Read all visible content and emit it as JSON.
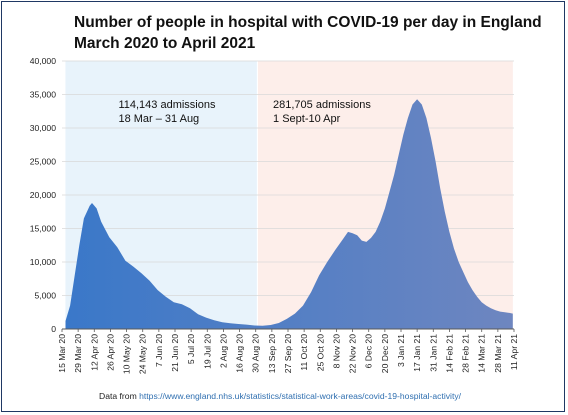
{
  "title_line1": "Number of people in hospital with COVID-19 per day in England",
  "title_line2": "March 2020 to April 2021",
  "source_prefix": "Data from",
  "source_url": "https://www.england.nhs.uk/statistics/statistical-work-areas/covid-19-hospital-activity/",
  "chart_data": {
    "type": "area",
    "ylim": [
      0,
      40000
    ],
    "yticks": [
      0,
      5000,
      10000,
      15000,
      20000,
      25000,
      30000,
      35000,
      40000
    ],
    "ytick_labels": [
      "0",
      "5,000",
      "10,000",
      "15,000",
      "20,000",
      "25,000",
      "30,000",
      "35,000",
      "40,000"
    ],
    "xlim": [
      "2020-03-15",
      "2021-04-11"
    ],
    "xtick_labels": [
      "15 Mar 20",
      "29 Mar 20",
      "12 Apr 20",
      "26 Apr 20",
      "10 May 20",
      "24 May 20",
      "7 Jun 20",
      "21 Jun 20",
      "5 Jul 20",
      "19 Jul 20",
      "2 Aug 20",
      "16 Aug 20",
      "30 Aug 20",
      "13 Sep 20",
      "27 Sep 20",
      "11 Oct 20",
      "25 Oct 20",
      "8 Nov 20",
      "22 Nov 20",
      "6 Dec 20",
      "20 Dec 20",
      "3 Jan 21",
      "17 Jan 21",
      "31 Jan 21",
      "14 Feb 21",
      "28 Feb 21",
      "14 Mar 21",
      "28 Mar 21",
      "11 Apr 21"
    ],
    "regions": [
      {
        "start": "2020-03-18",
        "end": "2020-08-31",
        "color": "#e8f3fb",
        "label1": "114,143 admissions",
        "label2": "18 Mar – 31 Aug"
      },
      {
        "start": "2020-09-01",
        "end": "2021-04-10",
        "color": "#fdeeea",
        "label1": "281,705 admissions",
        "label2": "1 Sept-10 Apr"
      }
    ],
    "series": [
      {
        "color_start": "#3a78c9",
        "color_end": "#6e86c0",
        "points": [
          [
            "2020-03-18",
            1200
          ],
          [
            "2020-03-22",
            3500
          ],
          [
            "2020-03-26",
            8000
          ],
          [
            "2020-03-30",
            12500
          ],
          [
            "2020-04-03",
            16500
          ],
          [
            "2020-04-08",
            18400
          ],
          [
            "2020-04-10",
            18800
          ],
          [
            "2020-04-14",
            18000
          ],
          [
            "2020-04-18",
            16000
          ],
          [
            "2020-04-25",
            13700
          ],
          [
            "2020-05-02",
            12200
          ],
          [
            "2020-05-09",
            10200
          ],
          [
            "2020-05-16",
            9300
          ],
          [
            "2020-05-23",
            8300
          ],
          [
            "2020-05-30",
            7200
          ],
          [
            "2020-06-06",
            5800
          ],
          [
            "2020-06-13",
            4800
          ],
          [
            "2020-06-20",
            4000
          ],
          [
            "2020-06-27",
            3700
          ],
          [
            "2020-07-04",
            3100
          ],
          [
            "2020-07-11",
            2200
          ],
          [
            "2020-07-18",
            1700
          ],
          [
            "2020-07-25",
            1300
          ],
          [
            "2020-08-01",
            1000
          ],
          [
            "2020-08-08",
            850
          ],
          [
            "2020-08-15",
            750
          ],
          [
            "2020-08-22",
            650
          ],
          [
            "2020-08-29",
            520
          ],
          [
            "2020-09-05",
            480
          ],
          [
            "2020-09-12",
            600
          ],
          [
            "2020-09-19",
            900
          ],
          [
            "2020-09-26",
            1500
          ],
          [
            "2020-10-03",
            2300
          ],
          [
            "2020-10-10",
            3500
          ],
          [
            "2020-10-17",
            5500
          ],
          [
            "2020-10-24",
            8000
          ],
          [
            "2020-10-31",
            10000
          ],
          [
            "2020-11-07",
            11800
          ],
          [
            "2020-11-14",
            13500
          ],
          [
            "2020-11-18",
            14500
          ],
          [
            "2020-11-22",
            14300
          ],
          [
            "2020-11-26",
            14000
          ],
          [
            "2020-11-30",
            13200
          ],
          [
            "2020-12-04",
            13000
          ],
          [
            "2020-12-08",
            13600
          ],
          [
            "2020-12-12",
            14500
          ],
          [
            "2020-12-16",
            16000
          ],
          [
            "2020-12-20",
            18000
          ],
          [
            "2020-12-24",
            20500
          ],
          [
            "2020-12-28",
            23000
          ],
          [
            "2021-01-01",
            26000
          ],
          [
            "2021-01-05",
            29000
          ],
          [
            "2021-01-09",
            31500
          ],
          [
            "2021-01-13",
            33500
          ],
          [
            "2021-01-17",
            34300
          ],
          [
            "2021-01-21",
            33500
          ],
          [
            "2021-01-25",
            31500
          ],
          [
            "2021-01-29",
            28500
          ],
          [
            "2021-02-02",
            25000
          ],
          [
            "2021-02-06",
            21000
          ],
          [
            "2021-02-10",
            17500
          ],
          [
            "2021-02-14",
            14500
          ],
          [
            "2021-02-18",
            12000
          ],
          [
            "2021-02-22",
            10000
          ],
          [
            "2021-02-26",
            8500
          ],
          [
            "2021-03-02",
            7000
          ],
          [
            "2021-03-06",
            5800
          ],
          [
            "2021-03-10",
            4800
          ],
          [
            "2021-03-14",
            4000
          ],
          [
            "2021-03-18",
            3500
          ],
          [
            "2021-03-22",
            3100
          ],
          [
            "2021-03-26",
            2800
          ],
          [
            "2021-03-30",
            2600
          ],
          [
            "2021-04-03",
            2500
          ],
          [
            "2021-04-07",
            2400
          ],
          [
            "2021-04-10",
            2300
          ]
        ]
      }
    ]
  }
}
